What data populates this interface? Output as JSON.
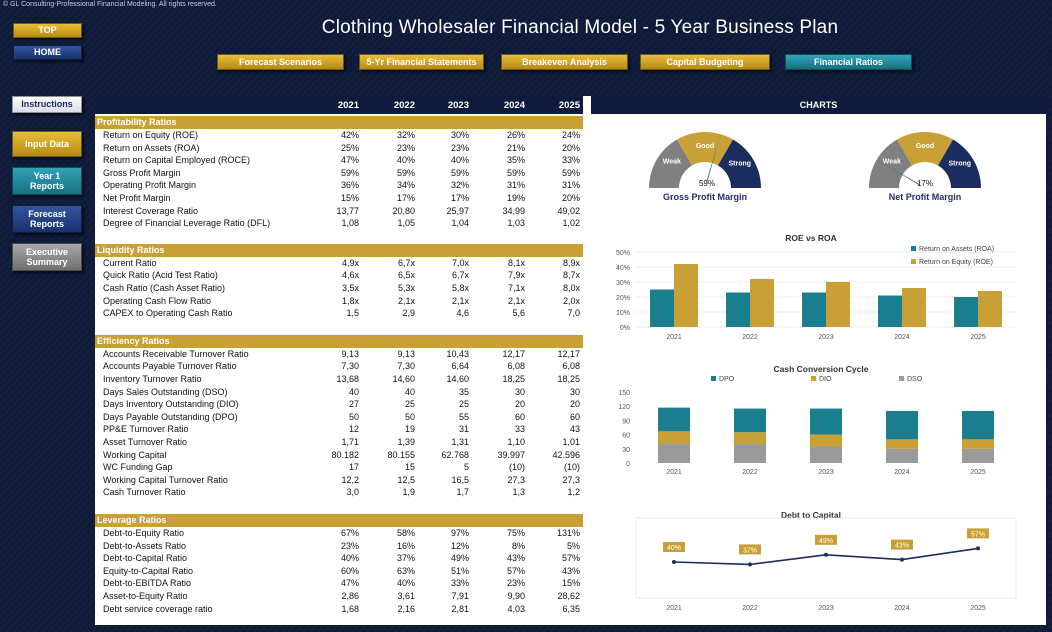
{
  "copyright": "© GL Consulting-Professional Financial Modeling. All rights reserved.",
  "title": "Clothing Wholesaler Financial Model - 5 Year Business Plan",
  "nav": {
    "top": "TOP",
    "home": "HOME",
    "tabs": [
      "Forecast Scenarios",
      "5-Yr Financial Statements",
      "Breakeven Analysis",
      "Capital Budgeting",
      "Financial Ratios"
    ],
    "side": [
      "Instructions",
      "Input Data",
      "Year 1 Reports",
      "Forecast Reports",
      "Executive Summary"
    ]
  },
  "years": [
    "2021",
    "2022",
    "2023",
    "2024",
    "2025"
  ],
  "charts_header": "CHARTS",
  "sections": [
    {
      "title": "Profitability Ratios",
      "rows": [
        {
          "label": "Return on Equity (ROE)",
          "values": [
            "42%",
            "32%",
            "30%",
            "26%",
            "24%"
          ]
        },
        {
          "label": "Return on Assets (ROA)",
          "values": [
            "25%",
            "23%",
            "23%",
            "21%",
            "20%"
          ]
        },
        {
          "label": "Return on Capital Employed (ROCE)",
          "values": [
            "47%",
            "40%",
            "40%",
            "35%",
            "33%"
          ]
        },
        {
          "label": "Gross Profit Margin",
          "values": [
            "59%",
            "59%",
            "59%",
            "59%",
            "59%"
          ]
        },
        {
          "label": "Operating Profit Margin",
          "values": [
            "36%",
            "34%",
            "32%",
            "31%",
            "31%"
          ]
        },
        {
          "label": "Net Profit Margin",
          "values": [
            "15%",
            "17%",
            "17%",
            "19%",
            "20%"
          ]
        },
        {
          "label": "Interest Coverage Ratio",
          "values": [
            "13,77",
            "20,80",
            "25,97",
            "34,99",
            "49,02"
          ]
        },
        {
          "label": "Degree of Financial Leverage Ratio (DFL)",
          "values": [
            "1,08",
            "1,05",
            "1,04",
            "1,03",
            "1,02"
          ]
        }
      ]
    },
    {
      "title": "Liquidity Ratios",
      "rows": [
        {
          "label": "Current Ratio",
          "values": [
            "4,9x",
            "6,7x",
            "7,0x",
            "8,1x",
            "8,9x"
          ]
        },
        {
          "label": "Quick Ratio (Acid Test Ratio)",
          "values": [
            "4,6x",
            "6,5x",
            "6,7x",
            "7,9x",
            "8,7x"
          ]
        },
        {
          "label": "Cash Ratio (Cash Asset Ratio)",
          "values": [
            "3,5x",
            "5,3x",
            "5,8x",
            "7,1x",
            "8,0x"
          ]
        },
        {
          "label": "Operating Cash Flow Ratio",
          "values": [
            "1,8x",
            "2,1x",
            "2,1x",
            "2,1x",
            "2,0x"
          ]
        },
        {
          "label": "CAPEX to Operating Cash Ratio",
          "values": [
            "1,5",
            "2,9",
            "4,6",
            "5,6",
            "7,0"
          ]
        }
      ]
    },
    {
      "title": "Efficiency Ratios",
      "rows": [
        {
          "label": "Accounts Receivable Turnover Ratio",
          "values": [
            "9,13",
            "9,13",
            "10,43",
            "12,17",
            "12,17"
          ]
        },
        {
          "label": "Accounts Payable Turnover Ratio",
          "values": [
            "7,30",
            "7,30",
            "6,64",
            "6,08",
            "6,08"
          ]
        },
        {
          "label": "Inventory Turnover Ratio",
          "values": [
            "13,68",
            "14,60",
            "14,60",
            "18,25",
            "18,25"
          ]
        },
        {
          "label": "Days Sales Outstanding (DSO)",
          "values": [
            "40",
            "40",
            "35",
            "30",
            "30"
          ]
        },
        {
          "label": "Days Inventory Outstanding (DIO)",
          "values": [
            "27",
            "25",
            "25",
            "20",
            "20"
          ]
        },
        {
          "label": "Days Payable Outstanding (DPO)",
          "values": [
            "50",
            "50",
            "55",
            "60",
            "60"
          ]
        },
        {
          "label": "PP&E Turnover Ratio",
          "values": [
            "12",
            "19",
            "31",
            "33",
            "43"
          ]
        },
        {
          "label": "Asset Turnover Ratio",
          "values": [
            "1,71",
            "1,39",
            "1,31",
            "1,10",
            "1,01"
          ]
        },
        {
          "label": "Working Capital",
          "values": [
            "80.182",
            "80.155",
            "62.768",
            "39.997",
            "42.596"
          ]
        },
        {
          "label": "WC Funding Gap",
          "values": [
            "17",
            "15",
            "5",
            "(10)",
            "(10)"
          ]
        },
        {
          "label": "Working Capital Turnover Ratio",
          "values": [
            "12,2",
            "12,5",
            "16,5",
            "27,3",
            "27,3"
          ]
        },
        {
          "label": "Cash Turnover Ratio",
          "values": [
            "3,0",
            "1,9",
            "1,7",
            "1,3",
            "1,2"
          ]
        }
      ]
    },
    {
      "title": "Leverage Ratios",
      "rows": [
        {
          "label": "Debt-to-Equity Ratio",
          "values": [
            "67%",
            "58%",
            "97%",
            "75%",
            "131%"
          ]
        },
        {
          "label": "Debt-to-Assets Ratio",
          "values": [
            "23%",
            "16%",
            "12%",
            "8%",
            "5%"
          ]
        },
        {
          "label": "Debt-to-Capital Ratio",
          "values": [
            "40%",
            "37%",
            "49%",
            "43%",
            "57%"
          ]
        },
        {
          "label": "Equity-to-Capital Ratio",
          "values": [
            "60%",
            "63%",
            "51%",
            "57%",
            "43%"
          ]
        },
        {
          "label": "Debt-to-EBITDA Ratio",
          "values": [
            "47%",
            "40%",
            "33%",
            "23%",
            "15%"
          ]
        },
        {
          "label": "Asset-to-Equity Ratio",
          "values": [
            "2,86",
            "3,61",
            "7,91",
            "9,90",
            "28,62"
          ]
        },
        {
          "label": "Debt service coverage ratio",
          "values": [
            "1,68",
            "2,16",
            "2,81",
            "4,03",
            "6,35"
          ]
        }
      ]
    }
  ],
  "colors": {
    "navy": "#0f1b3c",
    "gold": "#c9a035",
    "teal": "#1b7e8e",
    "gauge_gray": "#808080",
    "gauge_navy": "#1b2d5e",
    "dso_gray": "#9a9a9a"
  },
  "chart_data": [
    {
      "type": "gauge",
      "title": "Gross Profit Margin",
      "value": 59,
      "value_label": "59%",
      "bands": [
        "Weak",
        "Good",
        "Strong"
      ]
    },
    {
      "type": "gauge",
      "title": "Net Profit Margin",
      "value": 17,
      "value_label": "17%",
      "bands": [
        "Weak",
        "Good",
        "Strong"
      ]
    },
    {
      "type": "bar",
      "title": "ROE vs ROA",
      "categories": [
        "2021",
        "2022",
        "2023",
        "2024",
        "2025"
      ],
      "series": [
        {
          "name": "Return on Assets (ROA)",
          "values": [
            25,
            23,
            23,
            21,
            20
          ]
        },
        {
          "name": "Return on Equity (ROE)",
          "values": [
            42,
            32,
            30,
            26,
            24
          ]
        }
      ],
      "yticks": [
        "0%",
        "10%",
        "20%",
        "30%",
        "40%",
        "50%"
      ],
      "ylim": [
        0,
        50
      ],
      "legend": "top-right"
    },
    {
      "type": "bar",
      "stacked": true,
      "title": "Cash Conversion Cycle",
      "categories": [
        "2021",
        "2022",
        "2023",
        "2024",
        "2025"
      ],
      "series": [
        {
          "name": "DSO",
          "values": [
            40,
            40,
            35,
            30,
            30
          ]
        },
        {
          "name": "DIO",
          "values": [
            27,
            25,
            25,
            20,
            20
          ]
        },
        {
          "name": "DPO",
          "values": [
            50,
            50,
            55,
            60,
            60
          ]
        }
      ],
      "legend_order": [
        "DPO",
        "DIO",
        "DSO"
      ],
      "yticks": [
        "0",
        "30",
        "60",
        "90",
        "120",
        "150"
      ],
      "ylim": [
        0,
        150
      ],
      "legend": "top"
    },
    {
      "type": "line",
      "title": "Debt to Capital",
      "categories": [
        "2021",
        "2022",
        "2023",
        "2024",
        "2025"
      ],
      "values": [
        40,
        37,
        49,
        43,
        57
      ],
      "labels": [
        "40%",
        "37%",
        "49%",
        "43%",
        "57%"
      ]
    }
  ]
}
